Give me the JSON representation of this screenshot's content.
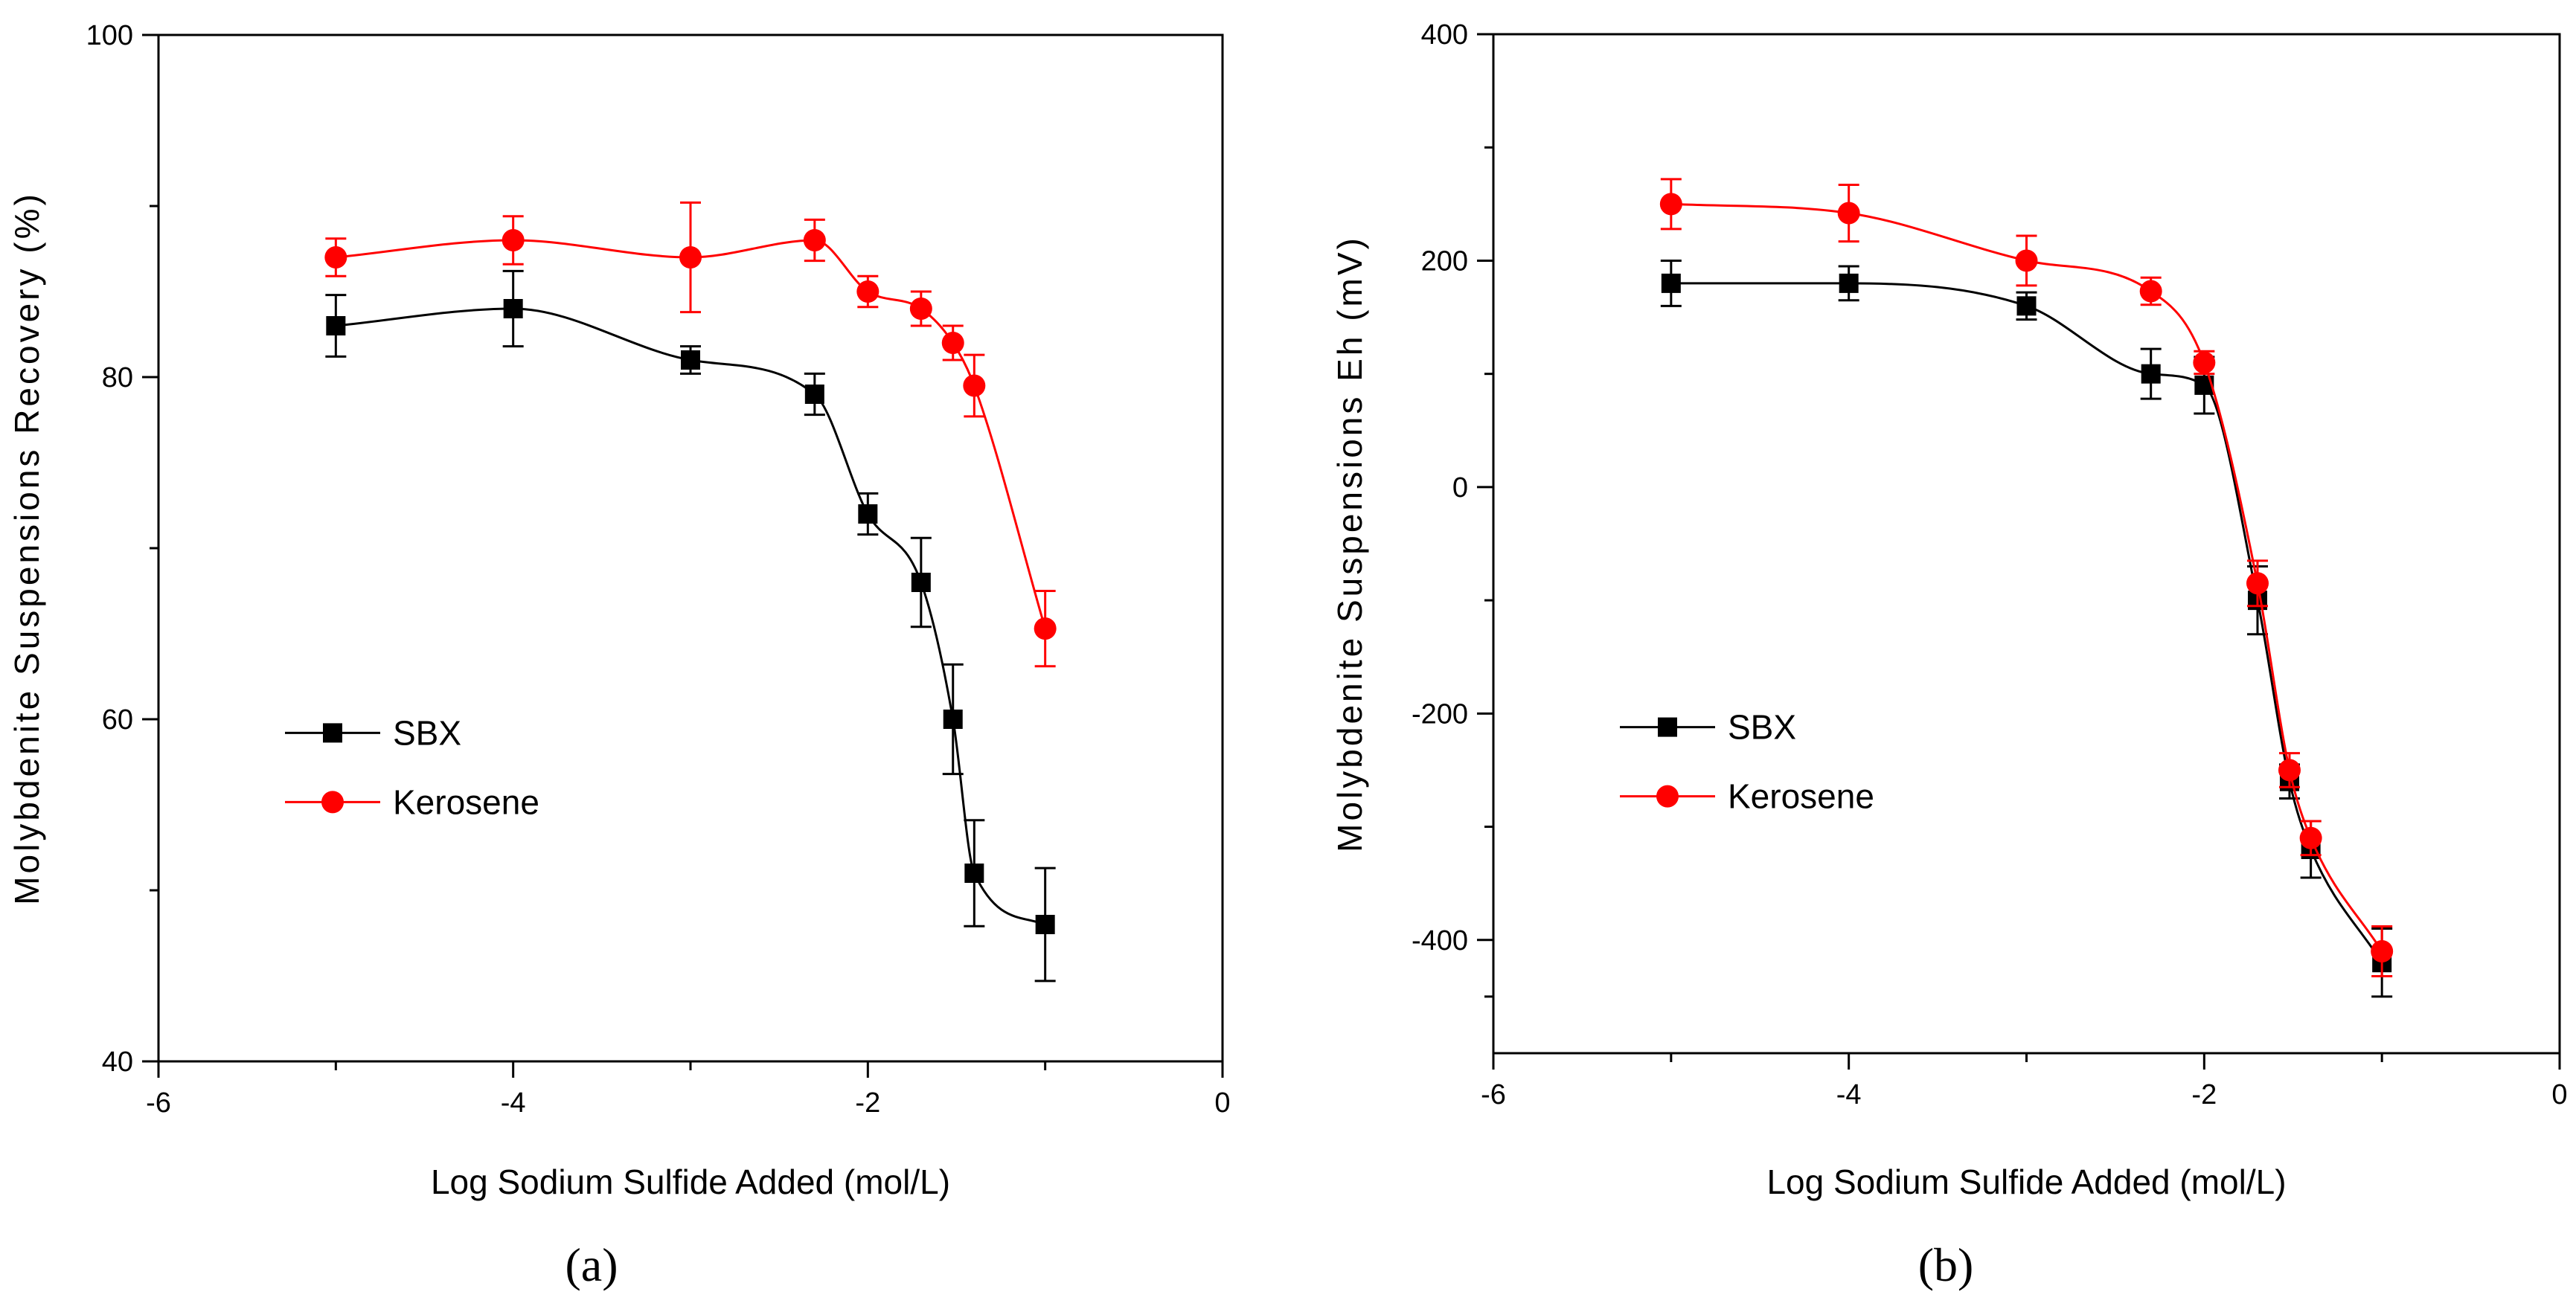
{
  "chart_data": [
    {
      "type": "line",
      "panel_label": "(a)",
      "xlabel": "Log Sodium Sulfide Added (mol/L)",
      "ylabel": "Molybdenite Suspensions Recovery (%)",
      "xlim": [
        -6,
        0
      ],
      "ylim": [
        40,
        100
      ],
      "xticks": [
        -6,
        -4,
        -2,
        0
      ],
      "xtick_labels": [
        "-6",
        "-4",
        "-2",
        "0"
      ],
      "yticks": [
        40,
        60,
        80,
        100
      ],
      "ytick_labels": [
        "40",
        "60",
        "80",
        "100"
      ],
      "legend_position": "lower-left",
      "series": [
        {
          "name": "SBX",
          "color": "#000000",
          "marker": "square",
          "x": [
            -5,
            -4,
            -3,
            -2.3,
            -2,
            -1.7,
            -1.52,
            -1.4,
            -1
          ],
          "y": [
            83,
            84,
            81,
            79,
            72,
            68,
            60,
            51,
            48
          ],
          "err": [
            1.8,
            2.2,
            0.8,
            1.2,
            1.2,
            2.6,
            3.2,
            3.1,
            3.3
          ]
        },
        {
          "name": "Kerosene",
          "color": "#ff0000",
          "marker": "circle",
          "x": [
            -5,
            -4,
            -3,
            -2.3,
            -2,
            -1.7,
            -1.52,
            -1.4,
            -1
          ],
          "y": [
            87,
            88,
            87,
            88,
            85,
            84,
            82,
            79.5,
            65.3
          ],
          "err": [
            1.1,
            1.4,
            3.2,
            1.2,
            0.9,
            1.0,
            1.0,
            1.8,
            2.2
          ]
        }
      ]
    },
    {
      "type": "line",
      "panel_label": "(b)",
      "xlabel": "Log Sodium Sulfide Added (mol/L)",
      "ylabel": "Molybdenite Suspensions Eh (mV)",
      "xlim": [
        -6,
        0
      ],
      "ylim": [
        -500,
        400
      ],
      "xticks": [
        -6,
        -4,
        -2,
        0
      ],
      "xtick_labels": [
        "-6",
        "-4",
        "-2",
        "0"
      ],
      "yticks": [
        -400,
        -200,
        0,
        200,
        400
      ],
      "ytick_labels": [
        "-400",
        "-200",
        "0",
        "200",
        "400"
      ],
      "legend_position": "lower-left",
      "series": [
        {
          "name": "SBX",
          "color": "#000000",
          "marker": "square",
          "x": [
            -5,
            -4,
            -3,
            -2.3,
            -2,
            -1.7,
            -1.52,
            -1.4,
            -1
          ],
          "y": [
            180,
            180,
            160,
            100,
            90,
            -100,
            -260,
            -320,
            -420
          ],
          "err": [
            20,
            15,
            12,
            22,
            25,
            30,
            15,
            25,
            30
          ]
        },
        {
          "name": "Kerosene",
          "color": "#ff0000",
          "marker": "circle",
          "x": [
            -5,
            -4,
            -3,
            -2.3,
            -2,
            -1.7,
            -1.52,
            -1.4,
            -1
          ],
          "y": [
            250,
            242,
            200,
            173,
            110,
            -85,
            -250,
            -310,
            -410
          ],
          "err": [
            22,
            25,
            22,
            12,
            10,
            20,
            15,
            15,
            22
          ]
        }
      ]
    }
  ]
}
